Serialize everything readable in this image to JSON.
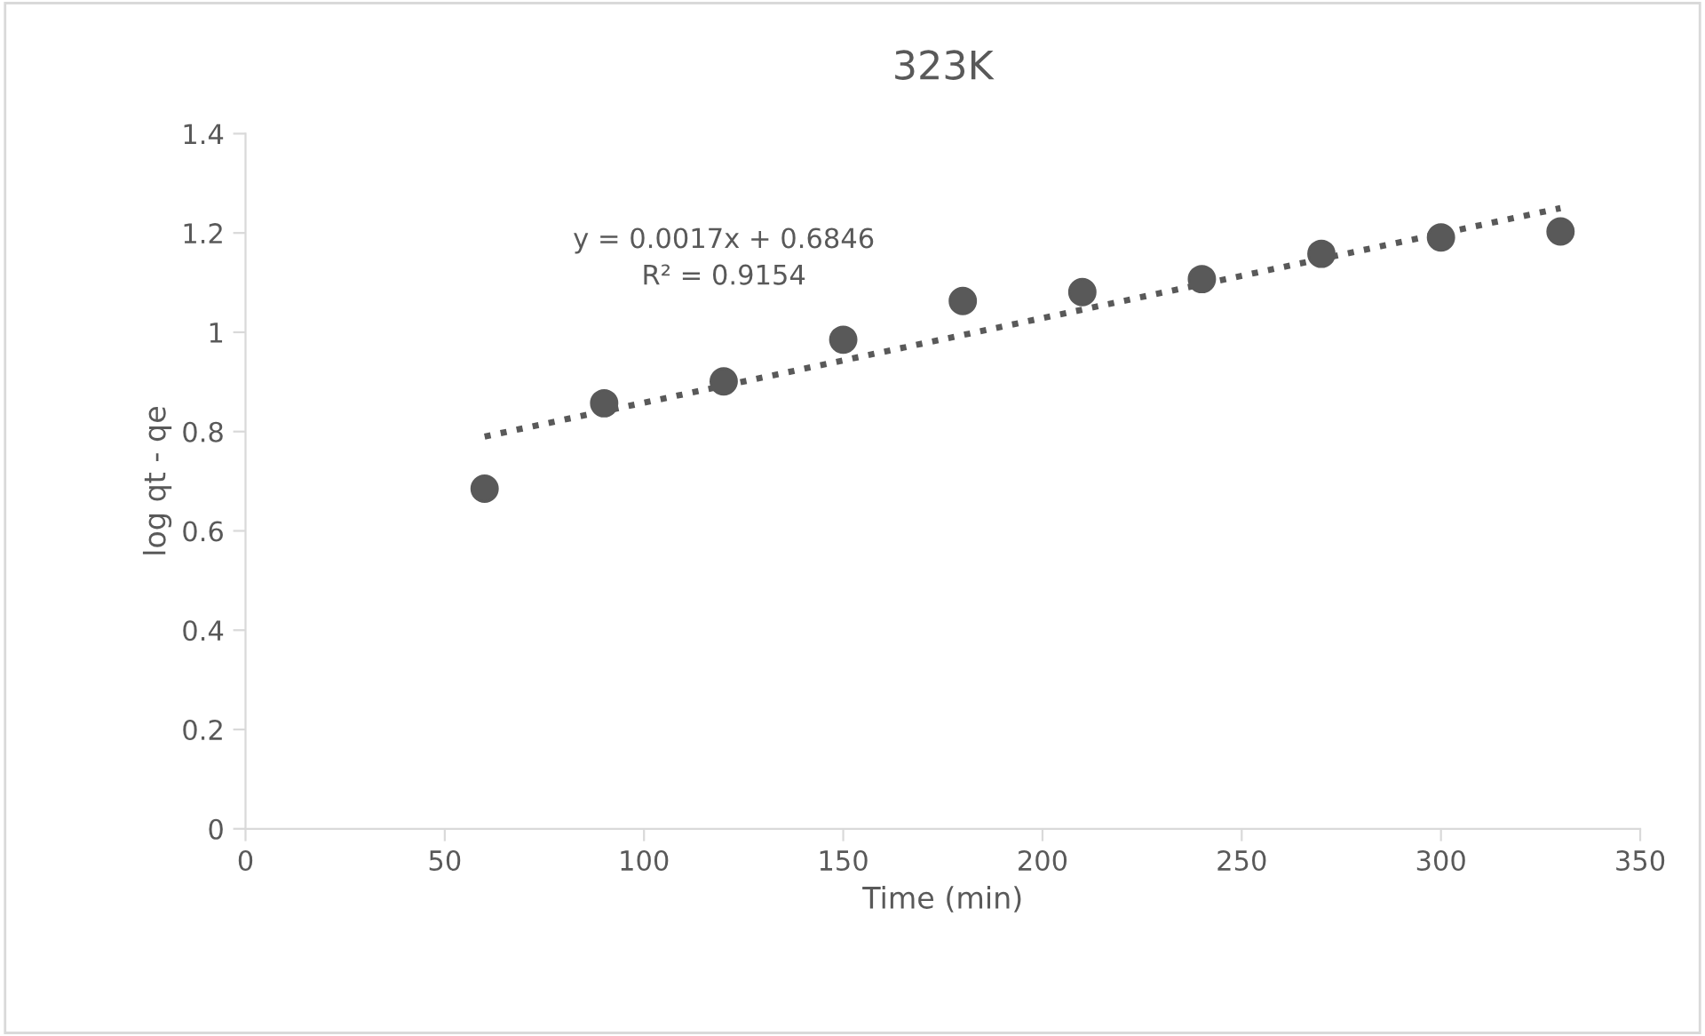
{
  "chart_data": {
    "type": "scatter",
    "title": "323K",
    "xlabel": "Time (min)",
    "ylabel": "log qt - qe",
    "x": [
      60,
      90,
      120,
      150,
      180,
      210,
      240,
      270,
      300,
      330
    ],
    "series": [
      {
        "color": "#595959",
        "marker": "circle",
        "values": [
          0.685,
          0.857,
          0.901,
          0.985,
          1.063,
          1.081,
          1.107,
          1.158,
          1.191,
          1.203
        ]
      },
      {
        "type": "line",
        "color": "#595959",
        "line_style": "dotted",
        "marker": "none",
        "x": [
          60,
          330
        ],
        "values": [
          0.79,
          1.25
        ]
      }
    ],
    "annotations": [
      "y = 0.0017x + 0.6846\nR² = 0.9154"
    ],
    "xlim": [
      0,
      350
    ],
    "xticks": [
      0,
      50,
      100,
      150,
      200,
      250,
      300,
      350
    ],
    "ylim": [
      0,
      1.4
    ],
    "yticks": [
      0,
      0.2,
      0.4,
      0.6,
      0.8,
      1,
      1.2,
      1.4
    ],
    "grid": false,
    "legend": false
  }
}
